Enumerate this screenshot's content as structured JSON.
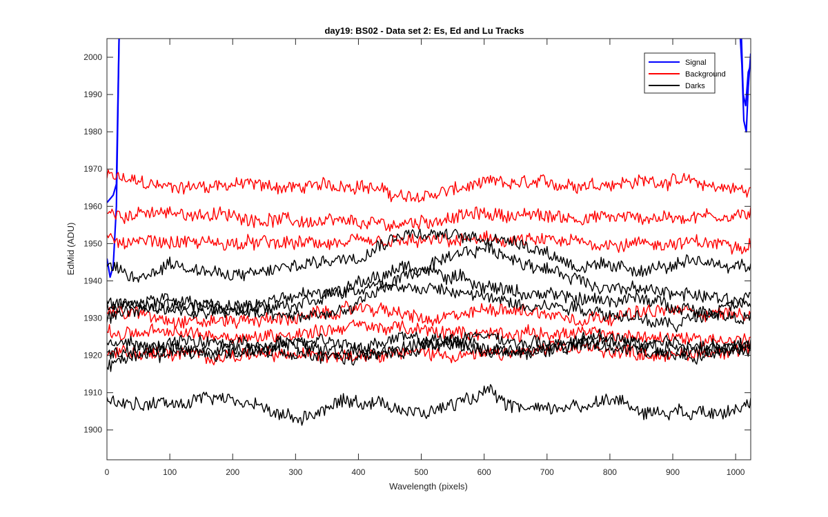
{
  "chart_data": {
    "type": "line",
    "title": "day19: BS02 - Data set 2: Es, Ed and Lu Tracks",
    "xlabel": "Wavelength (pixels)",
    "ylabel": "EdMid (ADU)",
    "xlim": [
      0,
      1024
    ],
    "ylim": [
      1892,
      2005
    ],
    "xticks": [
      0,
      100,
      200,
      300,
      400,
      500,
      600,
      700,
      800,
      900,
      1000
    ],
    "yticks": [
      1900,
      1910,
      1920,
      1930,
      1940,
      1950,
      1960,
      1970,
      1980,
      1990,
      2000
    ],
    "grid": false,
    "legend_position": "top-right",
    "legend": [
      {
        "label": "Signal",
        "color": "#0000ff"
      },
      {
        "label": "Background",
        "color": "#ff0000"
      },
      {
        "label": "Darks",
        "color": "#000000"
      }
    ],
    "noise_amplitude": 1.6,
    "series": [
      {
        "group": "Signal",
        "color": "#0000ff",
        "points": [
          [
            0,
            1961
          ],
          [
            5,
            1962
          ],
          [
            10,
            1963
          ],
          [
            15,
            1966
          ],
          [
            20,
            2012
          ]
        ]
      },
      {
        "group": "Signal",
        "color": "#0000ff",
        "points": [
          [
            0,
            1946
          ],
          [
            5,
            1941
          ],
          [
            10,
            1944
          ],
          [
            15,
            1960
          ],
          [
            20,
            2012
          ]
        ]
      },
      {
        "group": "Signal",
        "color": "#0000ff",
        "points": [
          [
            1005,
            2012
          ],
          [
            1010,
            1998
          ],
          [
            1013,
            1983
          ],
          [
            1017,
            1980
          ],
          [
            1020,
            1992
          ],
          [
            1024,
            2001
          ]
        ]
      },
      {
        "group": "Signal",
        "color": "#0000ff",
        "points": [
          [
            1008,
            2012
          ],
          [
            1012,
            1990
          ],
          [
            1016,
            1987
          ],
          [
            1020,
            1996
          ],
          [
            1024,
            1998
          ]
        ]
      },
      {
        "group": "Background",
        "color": "#ff0000",
        "points": [
          [
            0,
            1968
          ],
          [
            100,
            1965
          ],
          [
            200,
            1966
          ],
          [
            300,
            1965
          ],
          [
            400,
            1966
          ],
          [
            480,
            1962
          ],
          [
            600,
            1966
          ],
          [
            750,
            1966
          ],
          [
            900,
            1967
          ],
          [
            1024,
            1964
          ]
        ]
      },
      {
        "group": "Background",
        "color": "#ff0000",
        "points": [
          [
            0,
            1958
          ],
          [
            150,
            1958
          ],
          [
            300,
            1956
          ],
          [
            450,
            1955
          ],
          [
            600,
            1958
          ],
          [
            750,
            1957
          ],
          [
            900,
            1957
          ],
          [
            1024,
            1958
          ]
        ]
      },
      {
        "group": "Background",
        "color": "#ff0000",
        "points": [
          [
            0,
            1951
          ],
          [
            200,
            1950
          ],
          [
            400,
            1950
          ],
          [
            600,
            1951
          ],
          [
            800,
            1950
          ],
          [
            1024,
            1950
          ]
        ]
      },
      {
        "group": "Background",
        "color": "#ff0000",
        "points": [
          [
            0,
            1932
          ],
          [
            150,
            1929
          ],
          [
            300,
            1930
          ],
          [
            420,
            1933
          ],
          [
            520,
            1929
          ],
          [
            620,
            1933
          ],
          [
            750,
            1930
          ],
          [
            900,
            1932
          ],
          [
            1024,
            1931
          ]
        ]
      },
      {
        "group": "Background",
        "color": "#ff0000",
        "points": [
          [
            0,
            1926
          ],
          [
            100,
            1926
          ],
          [
            250,
            1925
          ],
          [
            400,
            1928
          ],
          [
            550,
            1926
          ],
          [
            700,
            1926
          ],
          [
            850,
            1925
          ],
          [
            1024,
            1924
          ]
        ]
      },
      {
        "group": "Background",
        "color": "#ff0000",
        "points": [
          [
            0,
            1921
          ],
          [
            150,
            1920
          ],
          [
            300,
            1920
          ],
          [
            450,
            1921
          ],
          [
            600,
            1920
          ],
          [
            750,
            1922
          ],
          [
            900,
            1920
          ],
          [
            1024,
            1922
          ]
        ]
      },
      {
        "group": "Darks",
        "color": "#000000",
        "points": [
          [
            0,
            1944
          ],
          [
            50,
            1940
          ],
          [
            100,
            1945
          ],
          [
            200,
            1941
          ],
          [
            300,
            1944
          ],
          [
            400,
            1947
          ],
          [
            470,
            1953
          ],
          [
            550,
            1952
          ],
          [
            650,
            1951
          ],
          [
            750,
            1944
          ],
          [
            850,
            1943
          ],
          [
            950,
            1945
          ],
          [
            1024,
            1944
          ]
        ]
      },
      {
        "group": "Darks",
        "color": "#000000",
        "points": [
          [
            0,
            1933
          ],
          [
            100,
            1935
          ],
          [
            200,
            1932
          ],
          [
            300,
            1930
          ],
          [
            380,
            1932
          ],
          [
            470,
            1941
          ],
          [
            600,
            1949
          ],
          [
            700,
            1943
          ],
          [
            800,
            1938
          ],
          [
            900,
            1937
          ],
          [
            1024,
            1934
          ]
        ]
      },
      {
        "group": "Darks",
        "color": "#000000",
        "points": [
          [
            0,
            1930
          ],
          [
            100,
            1934
          ],
          [
            200,
            1933
          ],
          [
            300,
            1934
          ],
          [
            400,
            1939
          ],
          [
            480,
            1944
          ],
          [
            550,
            1941
          ],
          [
            650,
            1937
          ],
          [
            750,
            1935
          ],
          [
            850,
            1935
          ],
          [
            950,
            1932
          ],
          [
            1024,
            1930
          ]
        ]
      },
      {
        "group": "Darks",
        "color": "#000000",
        "points": [
          [
            0,
            1934
          ],
          [
            150,
            1931
          ],
          [
            250,
            1934
          ],
          [
            350,
            1937
          ],
          [
            450,
            1939
          ],
          [
            550,
            1937
          ],
          [
            650,
            1934
          ],
          [
            750,
            1933
          ],
          [
            900,
            1928
          ],
          [
            1024,
            1936
          ]
        ]
      },
      {
        "group": "Darks",
        "color": "#000000",
        "points": [
          [
            0,
            1924
          ],
          [
            60,
            1922
          ],
          [
            150,
            1924
          ],
          [
            250,
            1922
          ],
          [
            350,
            1925
          ],
          [
            450,
            1920
          ],
          [
            550,
            1924
          ],
          [
            650,
            1920
          ],
          [
            750,
            1923
          ],
          [
            850,
            1921
          ],
          [
            950,
            1920
          ],
          [
            1024,
            1924
          ]
        ]
      },
      {
        "group": "Darks",
        "color": "#000000",
        "points": [
          [
            0,
            1920
          ],
          [
            80,
            1923
          ],
          [
            180,
            1920
          ],
          [
            280,
            1923
          ],
          [
            380,
            1921
          ],
          [
            480,
            1925
          ],
          [
            580,
            1922
          ],
          [
            680,
            1921
          ],
          [
            780,
            1925
          ],
          [
            880,
            1922
          ],
          [
            1024,
            1922
          ]
        ]
      },
      {
        "group": "Darks",
        "color": "#000000",
        "points": [
          [
            0,
            1918
          ],
          [
            100,
            1921
          ],
          [
            200,
            1922
          ],
          [
            300,
            1920
          ],
          [
            400,
            1919
          ],
          [
            500,
            1923
          ],
          [
            600,
            1925
          ],
          [
            700,
            1922
          ],
          [
            800,
            1924
          ],
          [
            900,
            1923
          ],
          [
            1024,
            1921
          ]
        ]
      },
      {
        "group": "Darks",
        "color": "#000000",
        "points": [
          [
            0,
            1907
          ],
          [
            100,
            1907
          ],
          [
            170,
            1909
          ],
          [
            250,
            1906
          ],
          [
            300,
            1903
          ],
          [
            380,
            1908
          ],
          [
            450,
            1907
          ],
          [
            500,
            1904
          ],
          [
            600,
            1910
          ],
          [
            650,
            1906
          ],
          [
            750,
            1906
          ],
          [
            800,
            1909
          ],
          [
            850,
            1905
          ],
          [
            950,
            1905
          ],
          [
            1024,
            1907
          ]
        ]
      }
    ]
  }
}
